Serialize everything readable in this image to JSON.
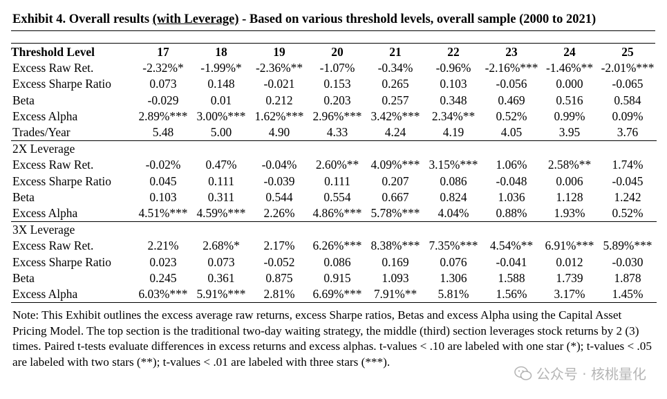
{
  "title": {
    "part1": "Exhibit 4. Overall results ",
    "part2": "(with Leverage)",
    "part3": " - Based on various threshold levels, overall sample (2000 to 2021)"
  },
  "header": {
    "label": "Threshold Level",
    "levels": [
      "17",
      "18",
      "19",
      "20",
      "21",
      "22",
      "23",
      "24",
      "25"
    ]
  },
  "sections": [
    {
      "title": "",
      "rows": [
        {
          "label": "Excess Raw Ret.",
          "values": [
            "-2.32%*",
            "-1.99%*",
            "-2.36%**",
            "-1.07%",
            "-0.34%",
            "-0.96%",
            "-2.16%***",
            "-1.46%**",
            "-2.01%***"
          ]
        },
        {
          "label": "Excess Sharpe Ratio",
          "values": [
            "0.073",
            "0.148",
            "-0.021",
            "0.153",
            "0.265",
            "0.103",
            "-0.056",
            "0.000",
            "-0.065"
          ]
        },
        {
          "label": "Beta",
          "values": [
            "-0.029",
            "0.01",
            "0.212",
            "0.203",
            "0.257",
            "0.348",
            "0.469",
            "0.516",
            "0.584"
          ]
        },
        {
          "label": "Excess Alpha",
          "values": [
            "2.89%***",
            "3.00%***",
            "1.62%***",
            "2.96%***",
            "3.42%***",
            "2.34%**",
            "0.52%",
            "0.99%",
            "0.09%"
          ]
        },
        {
          "label": "Trades/Year",
          "values": [
            "5.48",
            "5.00",
            "4.90",
            "4.33",
            "4.24",
            "4.19",
            "4.05",
            "3.95",
            "3.76"
          ]
        }
      ]
    },
    {
      "title": "2X Leverage",
      "rows": [
        {
          "label": "Excess Raw Ret.",
          "values": [
            "-0.02%",
            "0.47%",
            "-0.04%",
            "2.60%**",
            "4.09%***",
            "3.15%***",
            "1.06%",
            "2.58%**",
            "1.74%"
          ]
        },
        {
          "label": "Excess Sharpe Ratio",
          "values": [
            "0.045",
            "0.111",
            "-0.039",
            "0.111",
            "0.207",
            "0.086",
            "-0.048",
            "0.006",
            "-0.045"
          ]
        },
        {
          "label": "Beta",
          "values": [
            "0.103",
            "0.311",
            "0.544",
            "0.554",
            "0.667",
            "0.824",
            "1.036",
            "1.128",
            "1.242"
          ]
        },
        {
          "label": "Excess Alpha",
          "values": [
            "4.51%***",
            "4.59%***",
            "2.26%",
            "4.86%***",
            "5.78%***",
            "4.04%",
            "0.88%",
            "1.93%",
            "0.52%"
          ]
        }
      ]
    },
    {
      "title": "3X Leverage",
      "rows": [
        {
          "label": "Excess Raw Ret.",
          "values": [
            "2.21%",
            "2.68%*",
            "2.17%",
            "6.26%***",
            "8.38%***",
            "7.35%***",
            "4.54%**",
            "6.91%***",
            "5.89%***"
          ]
        },
        {
          "label": "Excess Sharpe Ratio",
          "values": [
            "0.023",
            "0.073",
            "-0.052",
            "0.086",
            "0.169",
            "0.076",
            "-0.041",
            "0.012",
            "-0.030"
          ]
        },
        {
          "label": "Beta",
          "values": [
            "0.245",
            "0.361",
            "0.875",
            "0.915",
            "1.093",
            "1.306",
            "1.588",
            "1.739",
            "1.878"
          ]
        },
        {
          "label": "Excess Alpha",
          "values": [
            "6.03%***",
            "5.91%***",
            "2.81%",
            "6.69%***",
            "7.91%**",
            "5.81%",
            "1.56%",
            "3.17%",
            "1.45%"
          ]
        }
      ]
    }
  ],
  "note": "Note: This Exhibit outlines the excess average raw returns, excess Sharpe ratios, Betas and excess Alpha using the Capital Asset Pricing Model. The top section is the traditional two-day waiting strategy, the middle (third) section leverages stock returns by 2 (3) times. Paired t-tests evaluate differences in excess returns and excess alphas. t-values < .10 are labeled with one star (*); t-values < .05 are labeled with two stars (**); t-values < .01 are labeled with three stars (***).",
  "watermark": {
    "text": "公众号 · 核桃量化",
    "icon": "wechat-icon"
  }
}
